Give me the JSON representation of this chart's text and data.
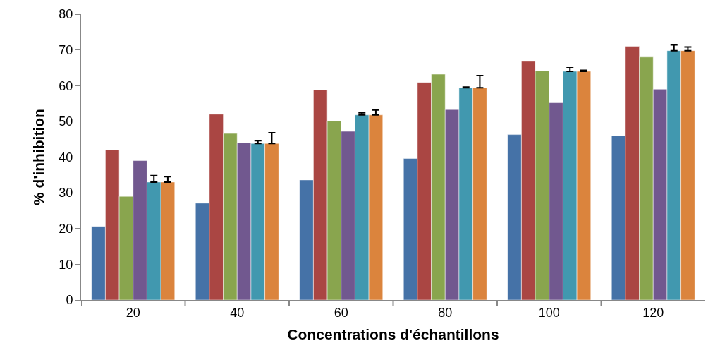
{
  "chart_data": {
    "type": "bar",
    "xlabel": "Concentrations d'échantillons",
    "ylabel": "% d'inhibition",
    "categories": [
      "20",
      "40",
      "60",
      "80",
      "100",
      "120"
    ],
    "ylim": [
      0,
      80
    ],
    "yticks": [
      0,
      10,
      20,
      30,
      40,
      50,
      60,
      70,
      80
    ],
    "series": [
      {
        "color": "#4572a7",
        "values": [
          20.6,
          27.1,
          33.6,
          39.6,
          46.3,
          46.0
        ]
      },
      {
        "color": "#aa4643",
        "values": [
          42.0,
          52.0,
          58.8,
          60.9,
          66.8,
          71.0
        ]
      },
      {
        "color": "#89a54e",
        "values": [
          29.0,
          46.6,
          50.1,
          63.2,
          64.2,
          68.0
        ]
      },
      {
        "color": "#71588f",
        "values": [
          39.0,
          44.0,
          47.2,
          53.3,
          55.2,
          59.0
        ]
      },
      {
        "color": "#4198af",
        "values": [
          33.0,
          43.8,
          51.8,
          59.4,
          64.0,
          69.8
        ],
        "errors": [
          [
            33.0,
            34.8
          ],
          [
            43.8,
            44.6
          ],
          [
            51.8,
            52.4
          ],
          [
            59.4,
            59.6
          ],
          [
            64.0,
            65.0
          ],
          [
            69.8,
            71.4
          ]
        ]
      },
      {
        "color": "#db843d",
        "values": [
          33.0,
          43.8,
          51.8,
          59.4,
          64.0,
          69.8
        ],
        "errors": [
          [
            33.0,
            34.5
          ],
          [
            43.8,
            46.8
          ],
          [
            51.8,
            53.2
          ],
          [
            59.4,
            62.8
          ],
          [
            64.0,
            64.3
          ],
          [
            69.8,
            70.8
          ]
        ]
      }
    ]
  }
}
